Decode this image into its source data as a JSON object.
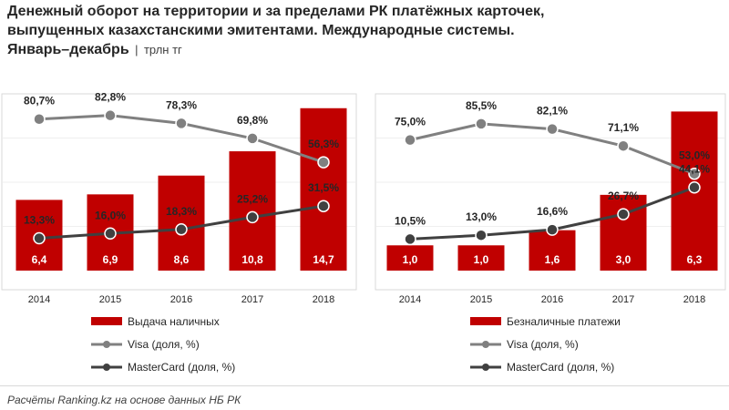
{
  "header": {
    "title_line1": "Денежный оборот на территории и за пределами РК платёжных карточек,",
    "title_line2": "выпущенных казахстанскими эмитентами.  Международные системы.",
    "title_line3": "Январь–декабрь",
    "separator": "|",
    "unit": "трлн тг"
  },
  "colors": {
    "bar": "#c00000",
    "visa": "#808080",
    "mastercard": "#404040",
    "text": "#262626",
    "grid": "#d9d9d9"
  },
  "chart_data": [
    {
      "type": "bar",
      "categories": [
        "2014",
        "2015",
        "2016",
        "2017",
        "2018"
      ],
      "series": [
        {
          "name": "Выдача наличных",
          "kind": "bar",
          "values": [
            6.4,
            6.9,
            8.6,
            10.8,
            14.7
          ],
          "labels": [
            "6,4",
            "6,9",
            "8,6",
            "10,8",
            "14,7"
          ]
        },
        {
          "name": "Visa (доля, %)",
          "kind": "line",
          "values": [
            80.7,
            82.8,
            78.3,
            69.8,
            56.3
          ],
          "labels": [
            "80,7%",
            "82,8%",
            "78,3%",
            "69,8%",
            "56,3%"
          ]
        },
        {
          "name": "MasterCard (доля, %)",
          "kind": "line",
          "values": [
            13.3,
            16.0,
            18.3,
            25.2,
            31.5
          ],
          "labels": [
            "13,3%",
            "16,0%",
            "18,3%",
            "25,2%",
            "31,5%"
          ]
        }
      ],
      "bar_ylim": [
        0,
        16
      ],
      "line_ylim": [
        -5,
        95
      ]
    },
    {
      "type": "bar",
      "categories": [
        "2014",
        "2015",
        "2016",
        "2017",
        "2018"
      ],
      "series": [
        {
          "name": "Безналичные платежи",
          "kind": "bar",
          "values": [
            1.0,
            1.0,
            1.6,
            3.0,
            6.3
          ],
          "labels": [
            "1,0",
            "1,0",
            "1,6",
            "3,0",
            "6,3"
          ]
        },
        {
          "name": "Visa (доля, %)",
          "kind": "line",
          "values": [
            75.0,
            85.5,
            82.1,
            71.1,
            53.0
          ],
          "labels": [
            "75,0%",
            "85,5%",
            "82,1%",
            "71,1%",
            "53,0%"
          ]
        },
        {
          "name": "MasterCard (доля, %)",
          "kind": "line",
          "values": [
            10.5,
            13.0,
            16.6,
            26.7,
            44.1
          ],
          "labels": [
            "10,5%",
            "13,0%",
            "16,6%",
            "26,7%",
            "44,1%"
          ]
        }
      ],
      "bar_ylim": [
        0,
        7
      ],
      "line_ylim": [
        -10,
        105
      ]
    }
  ],
  "footer": {
    "source": "Расчёты Ranking.kz на основе данных  НБ РК"
  }
}
